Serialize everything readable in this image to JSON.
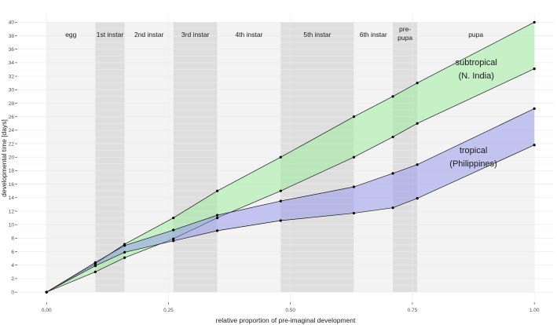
{
  "chart_data": {
    "type": "area",
    "xlabel": "relative proportion of pre-imaginal development",
    "ylabel": "developmental time [days]",
    "xlim": [
      0,
      1
    ],
    "ylim": [
      0,
      40
    ],
    "x_ticks": [
      "0.00",
      "0.25",
      "0.50",
      "0.75",
      "1.00"
    ],
    "x_tick_values": [
      0,
      0.25,
      0.5,
      0.75,
      1
    ],
    "y_ticks": [
      0,
      2,
      4,
      6,
      8,
      10,
      12,
      14,
      16,
      18,
      20,
      22,
      24,
      26,
      28,
      30,
      32,
      34,
      36,
      38,
      40
    ],
    "grid": true,
    "stages": [
      {
        "label": "egg",
        "x0": 0.0,
        "x1": 0.1,
        "shade": "light"
      },
      {
        "label": "1st instar",
        "x0": 0.1,
        "x1": 0.16,
        "shade": "dark"
      },
      {
        "label": "2nd instar",
        "x0": 0.16,
        "x1": 0.26,
        "shade": "light"
      },
      {
        "label": "3rd instar",
        "x0": 0.26,
        "x1": 0.35,
        "shade": "dark"
      },
      {
        "label": "4th instar",
        "x0": 0.35,
        "x1": 0.48,
        "shade": "light"
      },
      {
        "label": "5th instar",
        "x0": 0.48,
        "x1": 0.63,
        "shade": "dark"
      },
      {
        "label": "6th instar",
        "x0": 0.63,
        "x1": 0.71,
        "shade": "light"
      },
      {
        "label": "pre-\npupa",
        "x0": 0.71,
        "x1": 0.76,
        "shade": "dark"
      },
      {
        "label": "pupa",
        "x0": 0.76,
        "x1": 1.0,
        "shade": "light"
      }
    ],
    "series": [
      {
        "group": "subtropical",
        "fill": "#90ee90",
        "x": [
          0,
          0.1,
          0.16,
          0.26,
          0.35,
          0.48,
          0.63,
          0.71,
          0.76,
          1.0
        ],
        "upper": [
          0,
          4.2,
          7.1,
          11.0,
          15.0,
          20.0,
          26.0,
          29.0,
          31.0,
          40.0
        ],
        "lower": [
          0,
          3.0,
          5.1,
          7.9,
          11.0,
          15.0,
          20.0,
          23.0,
          25.0,
          33.1
        ]
      },
      {
        "group": "tropical",
        "fill": "#8a8aee",
        "x": [
          0,
          0.1,
          0.16,
          0.26,
          0.35,
          0.48,
          0.63,
          0.71,
          0.76,
          1.0
        ],
        "upper": [
          0,
          4.4,
          6.9,
          9.2,
          11.4,
          13.5,
          15.6,
          17.6,
          18.9,
          27.2
        ],
        "lower": [
          0,
          3.9,
          5.9,
          7.6,
          9.1,
          10.6,
          11.7,
          12.5,
          13.9,
          21.8
        ]
      }
    ],
    "annotations": [
      {
        "text": "subtropical",
        "x": 0.881,
        "y": 34.1
      },
      {
        "text": "(N. India)",
        "x": 0.881,
        "y": 32.1
      },
      {
        "text": "tropical",
        "x": 0.875,
        "y": 21.1
      },
      {
        "text": "(Philippines)",
        "x": 0.875,
        "y": 19.1
      }
    ]
  }
}
